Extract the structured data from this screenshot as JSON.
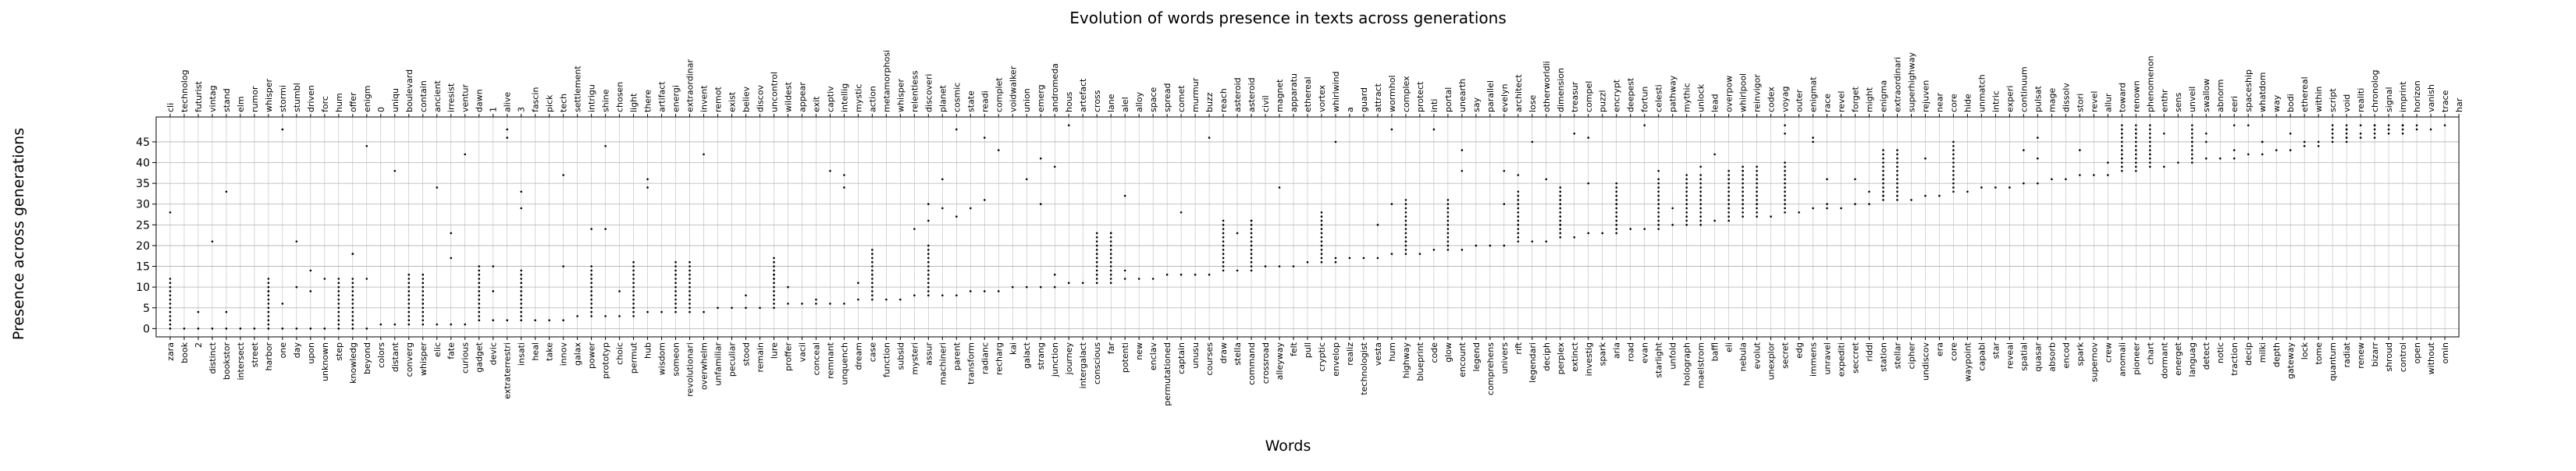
{
  "chart_data": {
    "type": "scatter",
    "title": "Evolution of words presence in texts across generations",
    "xlabel": "Words",
    "ylabel": "Presence across generations",
    "ylim": [
      -2,
      51
    ],
    "yticks": [
      0,
      5,
      10,
      15,
      20,
      25,
      30,
      35,
      40,
      45
    ],
    "grid": true,
    "marker_color": "#000000",
    "grid_color": "#b0b0b0",
    "bottom_words": [
      "zara",
      "book",
      "2",
      "distinct",
      "bookstor",
      "intersect",
      "street",
      "harbor",
      "one",
      "day",
      "upon",
      "unknown",
      "step",
      "knowledg",
      "beyond",
      "colors",
      "distant",
      "converg",
      "whisper",
      "elic",
      "fate",
      "curious",
      "gadget",
      "devic",
      "extraterrestri",
      "insati",
      "heal",
      "take",
      "innov",
      "galax",
      "power",
      "prototyp",
      "choic",
      "permut",
      "hub",
      "wisdom",
      "someon",
      "revolutionari",
      "overwhelm",
      "unfamiliar",
      "peculiar",
      "stood",
      "remain",
      "lure",
      "proffer",
      "vacil",
      "conceal",
      "remnant",
      "unquench",
      "dream",
      "case",
      "function",
      "subsid",
      "mysteri",
      "assur",
      "machineri",
      "parent",
      "transform",
      "radianc",
      "recharg",
      "kai",
      "galact",
      "strang",
      "junction",
      "journey",
      "intergalact",
      "conscious",
      "far",
      "potenti",
      "new",
      "enclav",
      "permutationed",
      "captain",
      "unusu",
      "courses",
      "draw",
      "stella",
      "command",
      "crossroad",
      "alleyway",
      "felt",
      "pull",
      "cryptic",
      "envelop",
      "realiz",
      "technologist",
      "vesta",
      "hum",
      "highway",
      "blueprint",
      "code",
      "glow",
      "encount",
      "legend",
      "comprehens",
      "univers",
      "rift",
      "legendari",
      "deciph",
      "perplex",
      "extinct",
      "investig",
      "spark",
      "aria",
      "road",
      "evan",
      "starlight",
      "unfold",
      "holograph",
      "maelstrom",
      "baffl",
      "eli",
      "nebula",
      "evolut",
      "unexplor",
      "secret",
      "edg",
      "immens",
      "unravel",
      "expediti",
      "seccret",
      "riddl",
      "station",
      "stellar",
      "cipher",
      "undiscov",
      "era",
      "core",
      "waypoint",
      "capabl",
      "star",
      "reveal",
      "spatial",
      "quasar",
      "absorb",
      "encod",
      "spark",
      "supernov",
      "crew",
      "anomali",
      "pioneer",
      "chart",
      "dormant",
      "energet",
      "languag",
      "detect",
      "notic",
      "traction",
      "decip",
      "milki",
      "depth",
      "gateway",
      "lock",
      "tome",
      "quantum",
      "radiat",
      "renew",
      "bizarr",
      "shroud",
      "control",
      "open",
      "without",
      "omin"
    ],
    "top_words": [
      "cli",
      "technolog",
      "futurist",
      "vintag",
      "stand",
      "elm",
      "rumor",
      "whisper",
      "stormi",
      "stumbl",
      "driven",
      "forc",
      "hum",
      "offer",
      "enigm",
      "0",
      "uniqu",
      "boulevard",
      "contain",
      "ancient",
      "irresist",
      "ventur",
      "dawn",
      "1",
      "alive",
      "3",
      "fascin",
      "pick",
      "tech",
      "settlement",
      "intrigu",
      "shine",
      "chosen",
      "light",
      "there",
      "artifact",
      "energi",
      "extraordinar",
      "invent",
      "remot",
      "exist",
      "believ",
      "discov",
      "uncontrol",
      "wildest",
      "appear",
      "exit",
      "captiv",
      "intellig",
      "mystic",
      "action",
      "metamorphosi",
      "whisper",
      "relentless",
      "discoveri",
      "planet",
      "cosmic",
      "state",
      "readi",
      "complet",
      "voidwalker",
      "union",
      "emerg",
      "andromeda",
      "hous",
      "artefact",
      "cross",
      "lane",
      "alel",
      "alloy",
      "space",
      "spread",
      "comet",
      "murmur",
      "buzz",
      "reach",
      "asteroid",
      "asteroid",
      "civil",
      "magnet",
      "apparatu",
      "ethereal",
      "vortex",
      "whirlwind",
      "a",
      "guard",
      "attract",
      "wormhol",
      "complex",
      "protect",
      "inti",
      "portal",
      "unearth",
      "say",
      "parallel",
      "evelyn",
      "architect",
      "lose",
      "otherworldli",
      "dimension",
      "treasur",
      "compel",
      "puzzl",
      "encrypt",
      "deepest",
      "fortun",
      "celesti",
      "pathway",
      "mythic",
      "unlock",
      "lead",
      "overpow",
      "whirlpool",
      "reinvigor",
      "codex",
      "voyag",
      "outer",
      "enigmat",
      "race",
      "revel",
      "forget",
      "might",
      "enigma",
      "extraordinari",
      "superhighway",
      "rejuven",
      "near",
      "core",
      "hide",
      "unmatch",
      "intric",
      "experi",
      "continuum",
      "pulsat",
      "mage",
      "dissolv",
      "stori",
      "revel",
      "allur",
      "toward",
      "renown",
      "phenomenon",
      "enthr",
      "sens",
      "unveil",
      "swallow",
      "abnorm",
      "eeri",
      "spaceship",
      "whatdom",
      "way",
      "bodi",
      "ethereal",
      "within",
      "script",
      "void",
      "realiti",
      "chronolog",
      "signal",
      "imprint",
      "horizon",
      "vanish",
      "trace",
      "har"
    ]
  }
}
